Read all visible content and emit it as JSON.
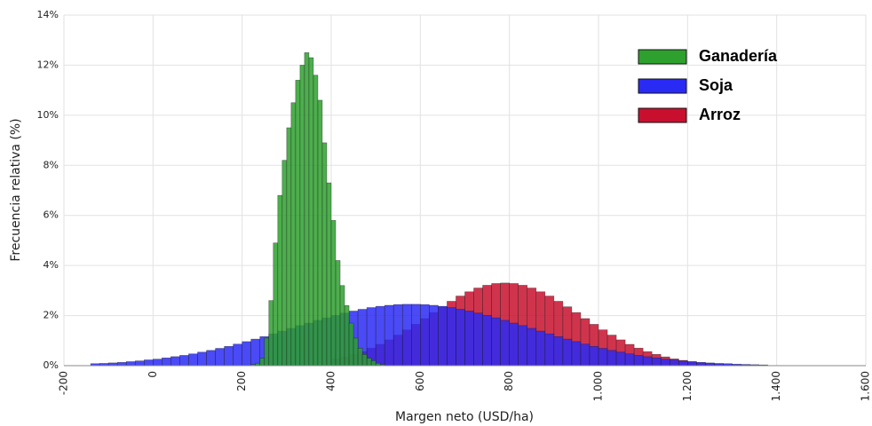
{
  "chart_data": {
    "type": "histogram",
    "x_label": "Margen neto (USD/ha)",
    "y_label": "Frecuencia relativa (%)",
    "xlim": [
      -200,
      1600
    ],
    "xticks": [
      -200,
      0,
      200,
      400,
      600,
      800,
      {
        "value": 1000,
        "label": "1.000"
      },
      {
        "value": 1200,
        "label": "1.200"
      },
      {
        "value": 1400,
        "label": "1.400"
      },
      {
        "value": 1600,
        "label": "1.600"
      }
    ],
    "ylim": [
      0,
      14
    ],
    "yticks": [
      {
        "value": 0,
        "label": "0%"
      },
      {
        "value": 2,
        "label": "2%"
      },
      {
        "value": 4,
        "label": "4%"
      },
      {
        "value": 6,
        "label": "6%"
      },
      {
        "value": 8,
        "label": "8%"
      },
      {
        "value": 10,
        "label": "10%"
      },
      {
        "value": 12,
        "label": "12%"
      },
      {
        "value": 14,
        "label": "14%"
      }
    ],
    "grid": true,
    "legend": "top-right",
    "series": [
      {
        "name": "Ganadería",
        "color": "#2ea02e",
        "bins": [
          220,
          230,
          240,
          250,
          260,
          270,
          280,
          290,
          300,
          310,
          320,
          330,
          340,
          350,
          360,
          370,
          380,
          390,
          400,
          410,
          420,
          430,
          440,
          450,
          460,
          470,
          480,
          490,
          500,
          510,
          520
        ],
        "values": [
          0.05,
          0.1,
          0.3,
          1.1,
          2.6,
          4.9,
          6.8,
          8.2,
          9.5,
          10.5,
          11.4,
          12.0,
          12.5,
          12.3,
          11.6,
          10.6,
          8.9,
          7.3,
          5.8,
          4.2,
          3.2,
          2.4,
          1.7,
          1.1,
          0.7,
          0.45,
          0.3,
          0.2,
          0.1,
          0.05
        ]
      },
      {
        "name": "Soja",
        "color": "#2a2af5",
        "bins": [
          -140,
          -120,
          -100,
          -80,
          -60,
          -40,
          -20,
          0,
          20,
          40,
          60,
          80,
          100,
          120,
          140,
          160,
          180,
          200,
          220,
          240,
          260,
          280,
          300,
          320,
          340,
          360,
          380,
          400,
          420,
          440,
          460,
          480,
          500,
          520,
          540,
          560,
          580,
          600,
          620,
          640,
          660,
          680,
          700,
          720,
          740,
          760,
          780,
          800,
          820,
          840,
          860,
          880,
          900,
          920,
          940,
          960,
          980,
          1000,
          1020,
          1040,
          1060,
          1080,
          1100,
          1120,
          1140,
          1160,
          1180,
          1200,
          1220,
          1240,
          1260,
          1280,
          1300,
          1320,
          1340,
          1360,
          1380
        ],
        "values": [
          0.08,
          0.09,
          0.11,
          0.13,
          0.16,
          0.19,
          0.23,
          0.26,
          0.31,
          0.36,
          0.41,
          0.47,
          0.54,
          0.61,
          0.69,
          0.77,
          0.86,
          0.96,
          1.06,
          1.16,
          1.27,
          1.38,
          1.49,
          1.6,
          1.7,
          1.81,
          1.91,
          2.01,
          2.1,
          2.18,
          2.25,
          2.32,
          2.37,
          2.41,
          2.44,
          2.45,
          2.45,
          2.44,
          2.41,
          2.37,
          2.32,
          2.25,
          2.18,
          2.1,
          2.01,
          1.91,
          1.81,
          1.7,
          1.6,
          1.49,
          1.38,
          1.27,
          1.16,
          1.06,
          0.96,
          0.86,
          0.77,
          0.69,
          0.61,
          0.54,
          0.47,
          0.41,
          0.36,
          0.31,
          0.26,
          0.23,
          0.19,
          0.16,
          0.13,
          0.11,
          0.09,
          0.08,
          0.06,
          0.05,
          0.04,
          0.03
        ]
      },
      {
        "name": "Arroz",
        "color": "#c8102e",
        "bins": [
          400,
          420,
          440,
          460,
          480,
          500,
          520,
          540,
          560,
          580,
          600,
          620,
          640,
          660,
          680,
          700,
          720,
          740,
          760,
          780,
          800,
          820,
          840,
          860,
          880,
          900,
          920,
          940,
          960,
          980,
          1000,
          1020,
          1040,
          1060,
          1080,
          1100,
          1120,
          1140,
          1160,
          1180,
          1200,
          1220,
          1240,
          1260,
          1280,
          1300,
          1320,
          1340
        ],
        "values": [
          0.27,
          0.35,
          0.45,
          0.56,
          0.7,
          0.85,
          1.03,
          1.22,
          1.43,
          1.65,
          1.88,
          2.12,
          2.35,
          2.57,
          2.78,
          2.95,
          3.1,
          3.21,
          3.28,
          3.3,
          3.28,
          3.21,
          3.1,
          2.95,
          2.78,
          2.57,
          2.35,
          2.12,
          1.88,
          1.65,
          1.43,
          1.22,
          1.03,
          0.85,
          0.7,
          0.56,
          0.45,
          0.35,
          0.27,
          0.21,
          0.16,
          0.12,
          0.08,
          0.06,
          0.04,
          0.03,
          0.02
        ]
      }
    ]
  }
}
